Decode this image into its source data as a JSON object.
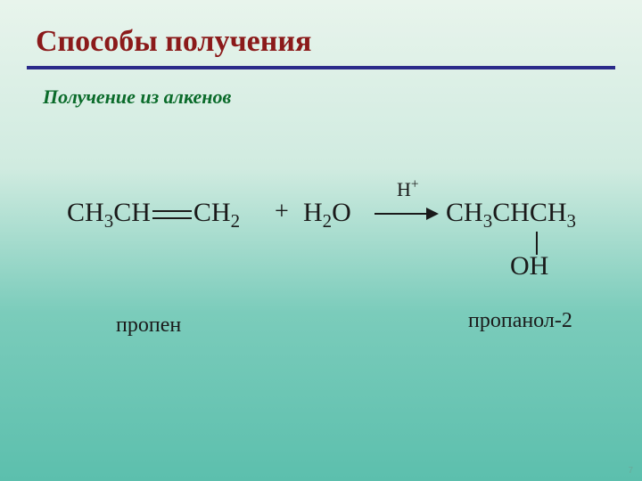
{
  "title": "Способы получения",
  "subtitle": "Получение из алкенов",
  "reaction": {
    "reactant_pre": "CH",
    "reactant_sub1": "3",
    "reactant_mid": "CH",
    "reactant_post": "CH",
    "reactant_sub2": "2",
    "plus": "+",
    "water_h": "H",
    "water_sub": "2",
    "water_o": "O",
    "catalyst_h": "H",
    "catalyst_sup": "+",
    "product_c1": "CH",
    "product_s1": "3",
    "product_c2": "CHCH",
    "product_s2": "3",
    "product_oh": "OH"
  },
  "labels": {
    "reactant": "пропен",
    "product": "пропанол-2"
  },
  "pagenum": "7",
  "style": {
    "title_color": "#8b1a1a",
    "rule_color": "#2a2a8a",
    "subtitle_color": "#0a6b2a",
    "text_color": "#1a1a1a",
    "bg_top": "#e8f4ec",
    "bg_bottom": "#5cbfad",
    "title_fontsize": 34,
    "subtitle_fontsize": 22,
    "formula_fontsize": 30,
    "label_fontsize": 24
  }
}
